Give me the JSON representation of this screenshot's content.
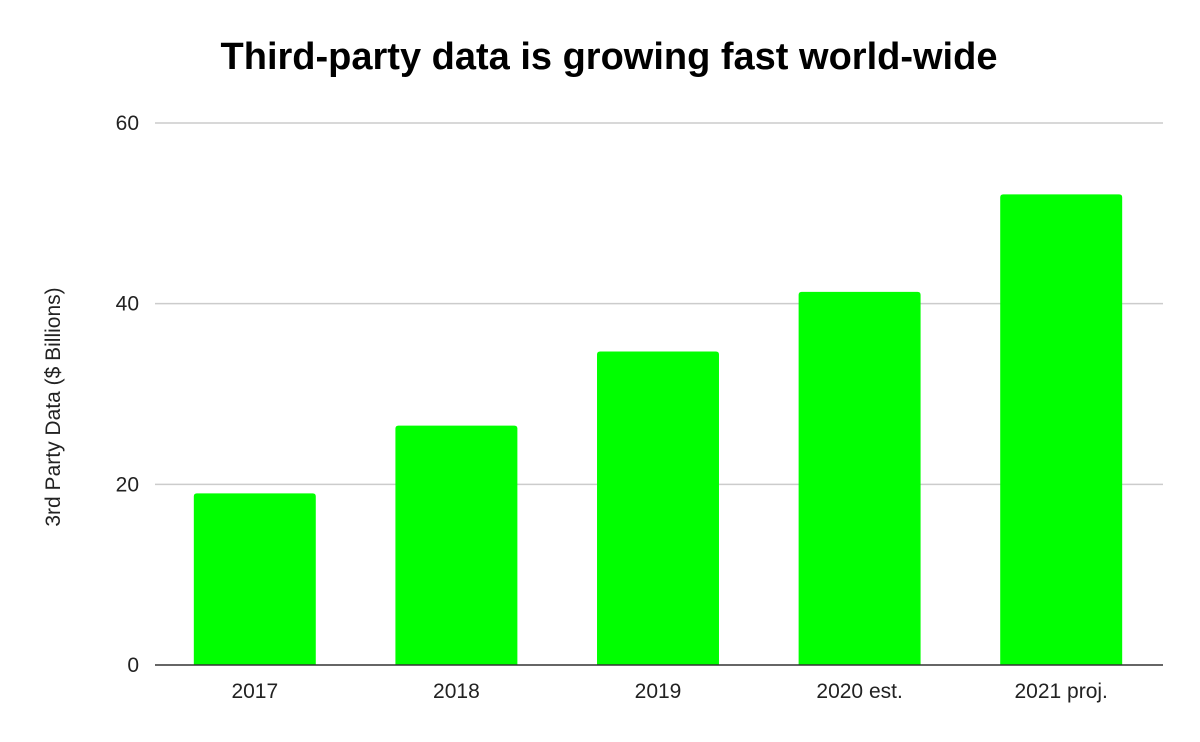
{
  "chart_data": {
    "type": "bar",
    "title": "Third-party data is growing fast world-wide",
    "xlabel": "",
    "ylabel": "3rd Party Data ($ Billions)",
    "categories": [
      "2017",
      "2018",
      "2019",
      "2020 est.",
      "2021 proj."
    ],
    "series": [
      {
        "values": [
          19,
          26.5,
          34.7,
          41.3,
          52.1
        ]
      }
    ],
    "ylim": [
      0,
      60
    ],
    "yticks": [
      0,
      20,
      40,
      60
    ],
    "grid": true,
    "legend": "none",
    "colors": {
      "bar": "#00ff00",
      "grid": "#cccccc",
      "axis": "#333333"
    }
  }
}
